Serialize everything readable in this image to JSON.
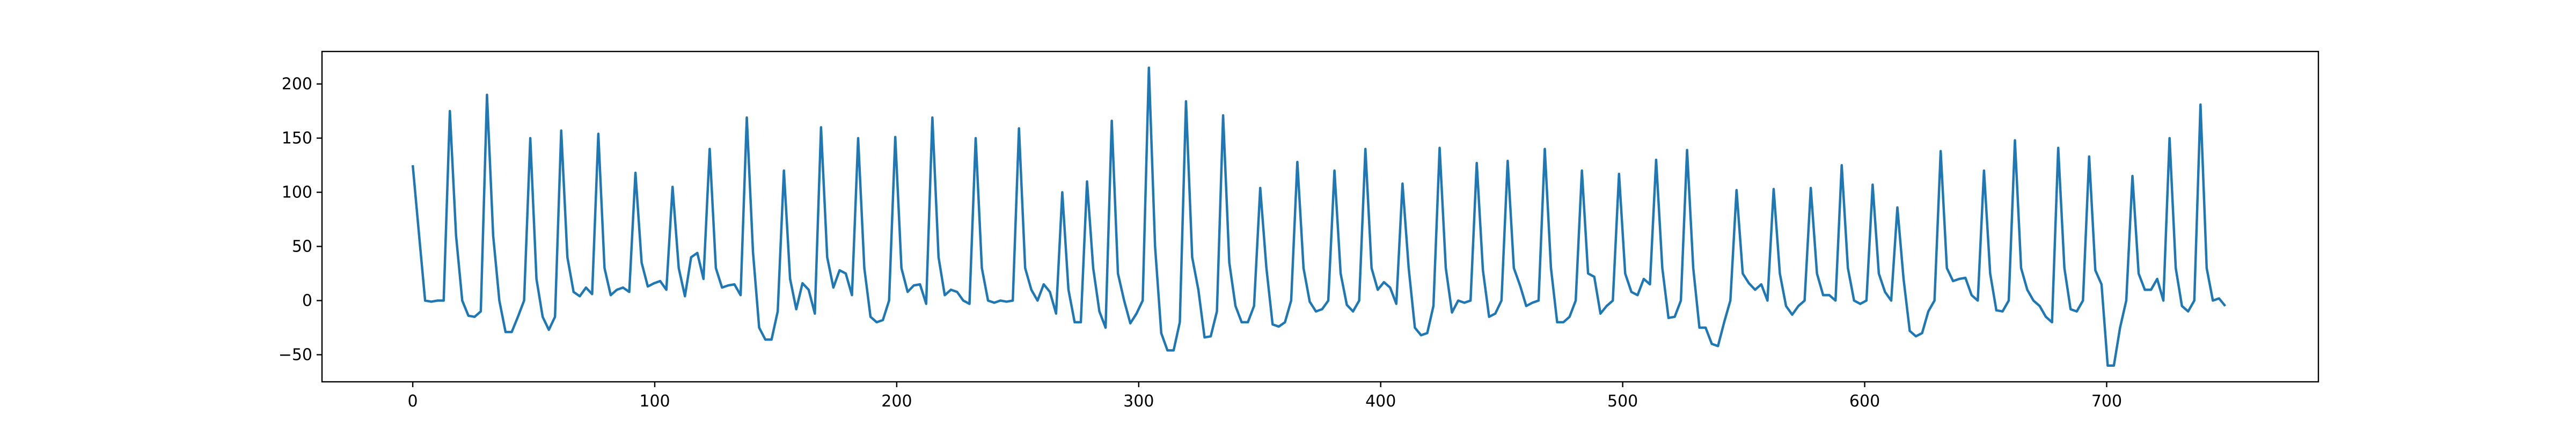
{
  "chart_data": {
    "type": "line",
    "title": "",
    "xlabel": "",
    "ylabel": "",
    "xlim": [
      -37.5,
      787.5
    ],
    "ylim": [
      -75,
      230
    ],
    "x_ticks": [
      0,
      100,
      200,
      300,
      400,
      500,
      600,
      700
    ],
    "y_ticks": [
      -50,
      0,
      50,
      100,
      150,
      200
    ],
    "grid": false,
    "legend": "none",
    "x_range": [
      0,
      749
    ],
    "color": "#1f77b4",
    "series": [
      {
        "values": [
          125,
          62,
          0,
          -1,
          0,
          0,
          175,
          60,
          0,
          -14,
          -15,
          -10,
          190,
          60,
          0,
          -29,
          -29,
          -15,
          0,
          150,
          20,
          -15,
          -27,
          -15,
          157,
          40,
          8,
          4,
          12,
          6,
          154,
          30,
          5,
          10,
          12,
          8,
          118,
          35,
          13,
          16,
          18,
          10,
          105,
          30,
          4,
          40,
          44,
          20,
          140,
          30,
          12,
          14,
          15,
          5,
          169,
          45,
          -25,
          -36,
          -36,
          -10,
          120,
          20,
          -8,
          16,
          10,
          -12,
          160,
          40,
          12,
          28,
          25,
          5,
          150,
          30,
          -15,
          -20,
          -18,
          0,
          151,
          30,
          8,
          14,
          15,
          -3,
          169,
          40,
          5,
          10,
          8,
          0,
          -3,
          150,
          30,
          0,
          -2,
          0,
          -1,
          0,
          159,
          30,
          10,
          0,
          15,
          8,
          -12,
          100,
          10,
          -20,
          -20,
          110,
          30,
          -10,
          -25,
          166,
          25,
          0,
          -21,
          -12,
          0,
          215,
          50,
          -30,
          -46,
          -46,
          -20,
          184,
          40,
          10,
          -34,
          -33,
          -10,
          171,
          35,
          -5,
          -20,
          -20,
          -5,
          104,
          30,
          -22,
          -24,
          -20,
          0,
          128,
          30,
          -1,
          -10,
          -8,
          0,
          120,
          25,
          -4,
          -10,
          0,
          140,
          30,
          10,
          17,
          12,
          -3,
          108,
          30,
          -25,
          -32,
          -30,
          -5,
          141,
          30,
          -11,
          0,
          -2,
          0,
          127,
          28,
          -15,
          -12,
          0,
          129,
          30,
          14,
          -5,
          -2,
          0,
          140,
          30,
          -20,
          -20,
          -15,
          0,
          120,
          25,
          22,
          -12,
          -5,
          0,
          117,
          25,
          8,
          5,
          20,
          15,
          130,
          30,
          -16,
          -15,
          0,
          139,
          30,
          -25,
          -25,
          -40,
          -42,
          -20,
          0,
          102,
          25,
          16,
          10,
          15,
          0,
          103,
          25,
          -5,
          -13,
          -5,
          0,
          104,
          25,
          5,
          5,
          0,
          125,
          30,
          0,
          -3,
          0,
          107,
          25,
          8,
          0,
          86,
          20,
          -28,
          -33,
          -30,
          -10,
          0,
          138,
          30,
          18,
          20,
          21,
          5,
          0,
          120,
          25,
          -9,
          -10,
          0,
          148,
          30,
          10,
          0,
          -5,
          -15,
          -20,
          141,
          30,
          -8,
          -10,
          0,
          133,
          28,
          15,
          -60,
          -60,
          -25,
          0,
          115,
          25,
          10,
          10,
          20,
          0,
          150,
          30,
          -5,
          -10,
          0,
          181,
          30,
          0,
          2,
          -5
        ]
      }
    ]
  }
}
